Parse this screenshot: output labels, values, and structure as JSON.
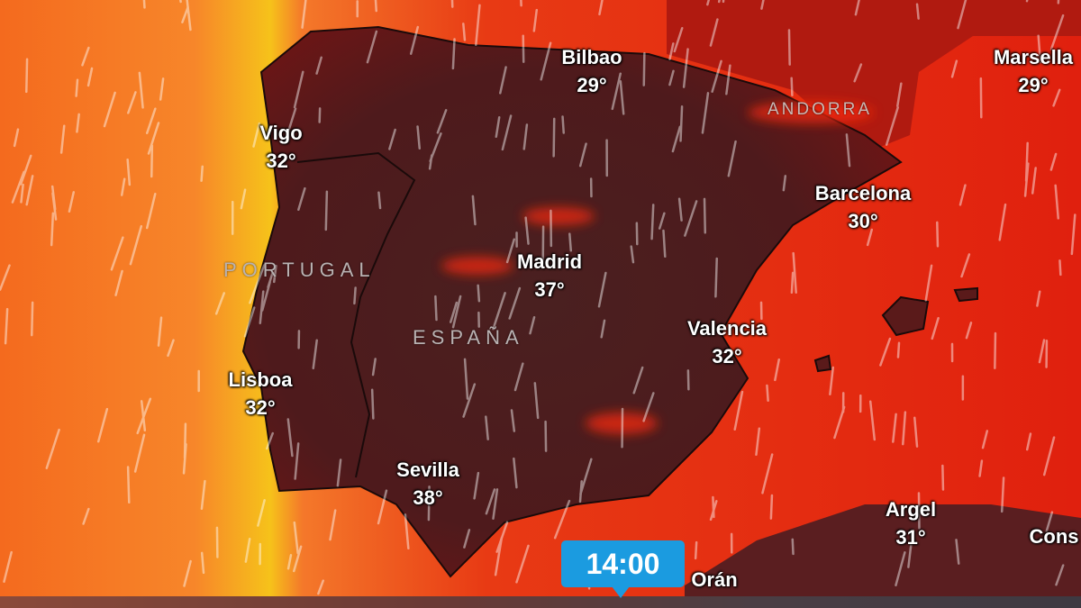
{
  "map": {
    "cities": [
      {
        "name": "Bilbao",
        "temp": "29°"
      },
      {
        "name": "Marsella",
        "temp": "29°"
      },
      {
        "name": "Vigo",
        "temp": "32°"
      },
      {
        "name": "Barcelona",
        "temp": "30°"
      },
      {
        "name": "Madrid",
        "temp": "37°"
      },
      {
        "name": "Valencia",
        "temp": "32°"
      },
      {
        "name": "Lisboa",
        "temp": "32°"
      },
      {
        "name": "Sevilla",
        "temp": "38°"
      },
      {
        "name": "Argel",
        "temp": "31°"
      },
      {
        "name": "Cons",
        "temp": ""
      },
      {
        "name": "Orán",
        "temp": ""
      }
    ],
    "countries": [
      "PORTUGAL",
      "ESPAÑA",
      "ANDORRA"
    ],
    "layer": "temperature-and-wind",
    "colors": {
      "land_hot": "#4a1c1c",
      "sea_hot": "#e52a10",
      "sea_warm": "#f26a1c",
      "coast_yellow": "#f6c21a",
      "time_badge": "#1b9be0"
    }
  },
  "timeline": {
    "current_time": "14:00"
  }
}
